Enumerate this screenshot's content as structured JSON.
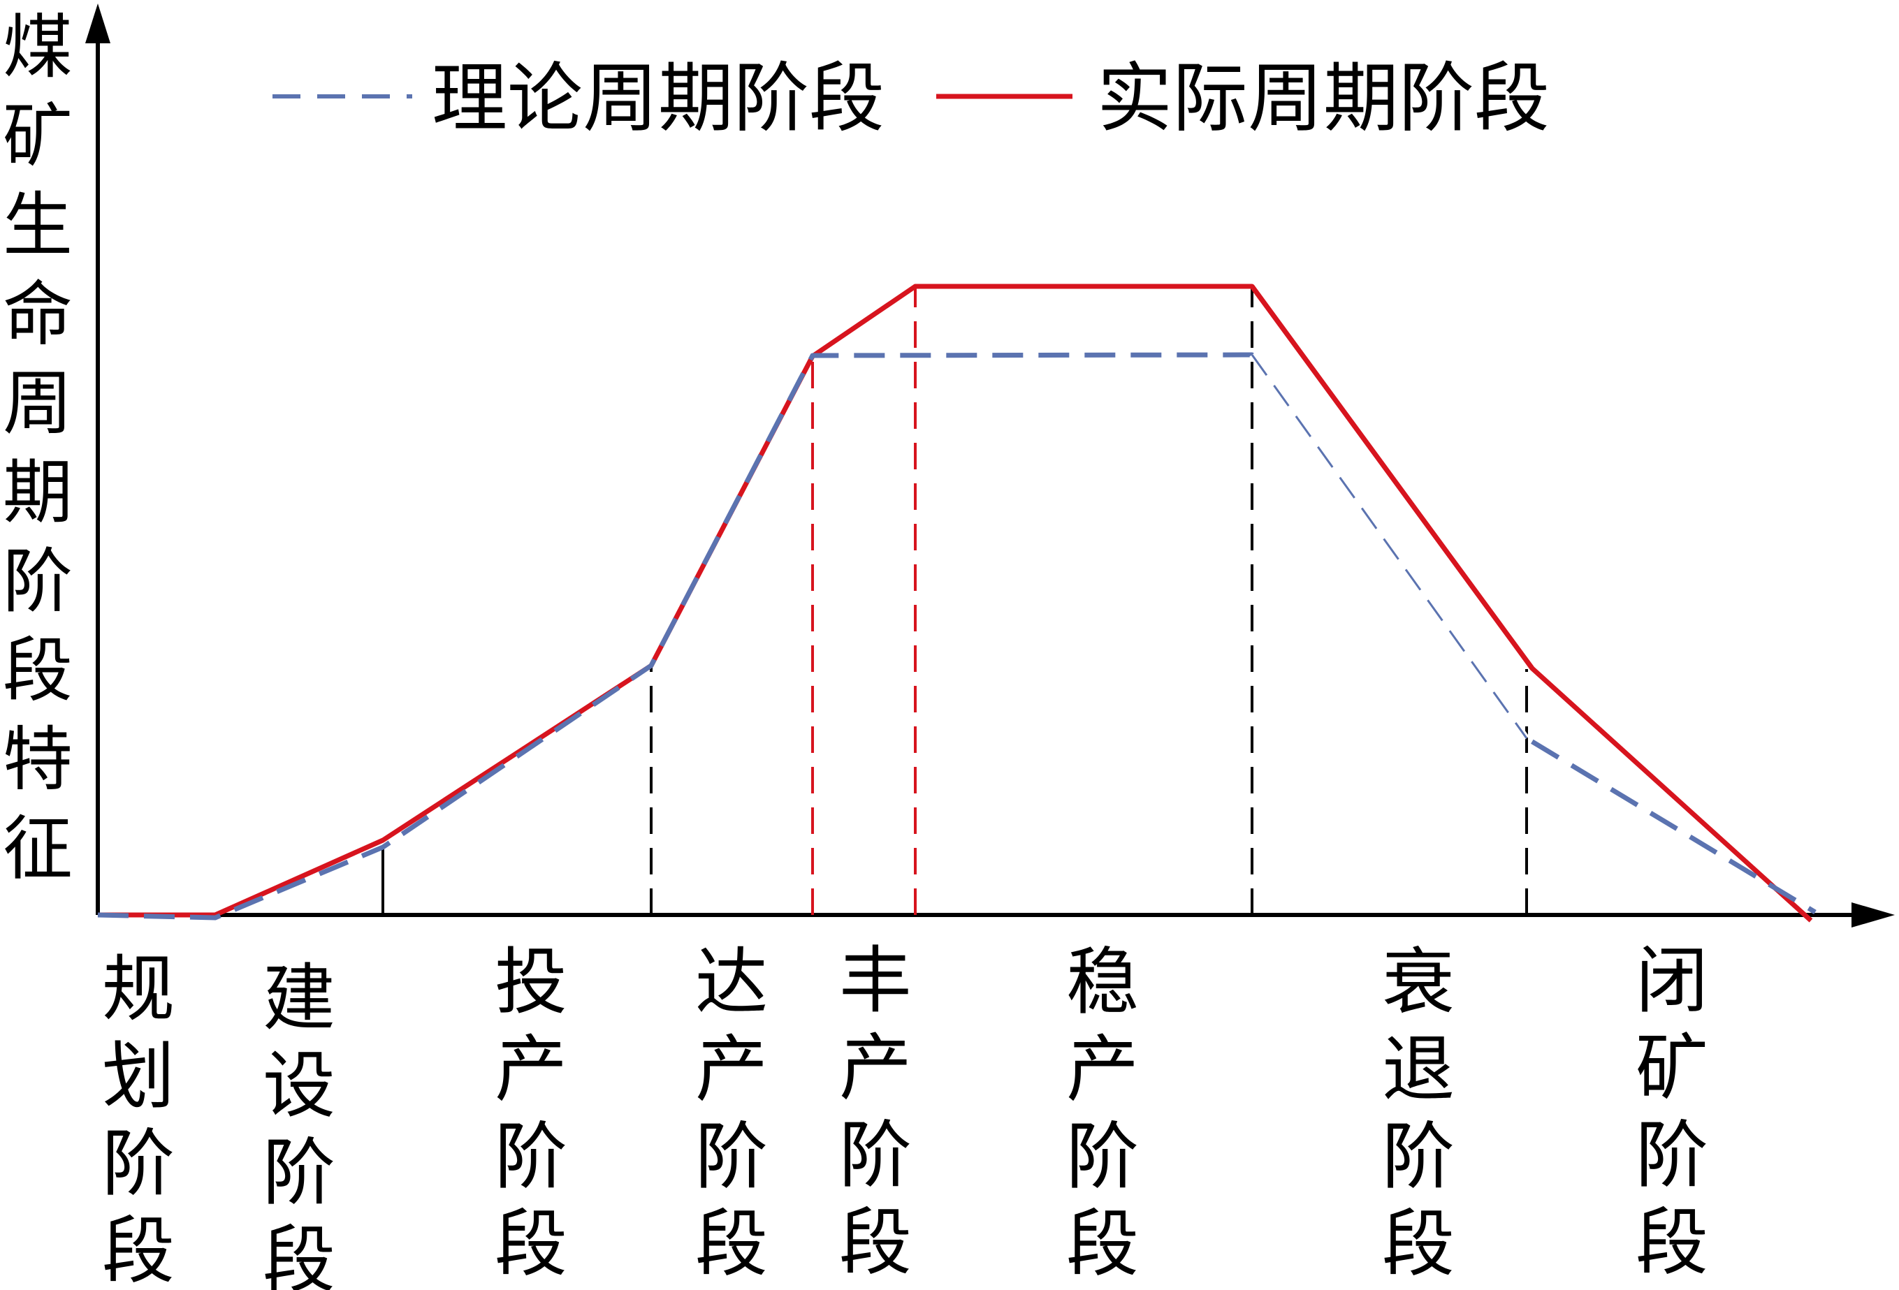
{
  "y_axis_label": "煤矿生命周期阶段特征",
  "legend": {
    "theoretical": "理论周期阶段",
    "actual": "实际周期阶段"
  },
  "colors": {
    "theoretical": "#5b73b0",
    "actual": "#d7141e",
    "axis": "#000000",
    "divider_black": "#000000",
    "divider_red": "#d7141e"
  },
  "stages": [
    {
      "id": "planning",
      "label": "规划阶段"
    },
    {
      "id": "construction",
      "label": "建设阶段"
    },
    {
      "id": "commissioning",
      "label": "投产阶段"
    },
    {
      "id": "reaching",
      "label": "达产阶段"
    },
    {
      "id": "peak",
      "label": "丰产阶段"
    },
    {
      "id": "stable",
      "label": "稳产阶段"
    },
    {
      "id": "decline",
      "label": "衰退阶段"
    },
    {
      "id": "closure",
      "label": "闭矿阶段"
    }
  ]
}
